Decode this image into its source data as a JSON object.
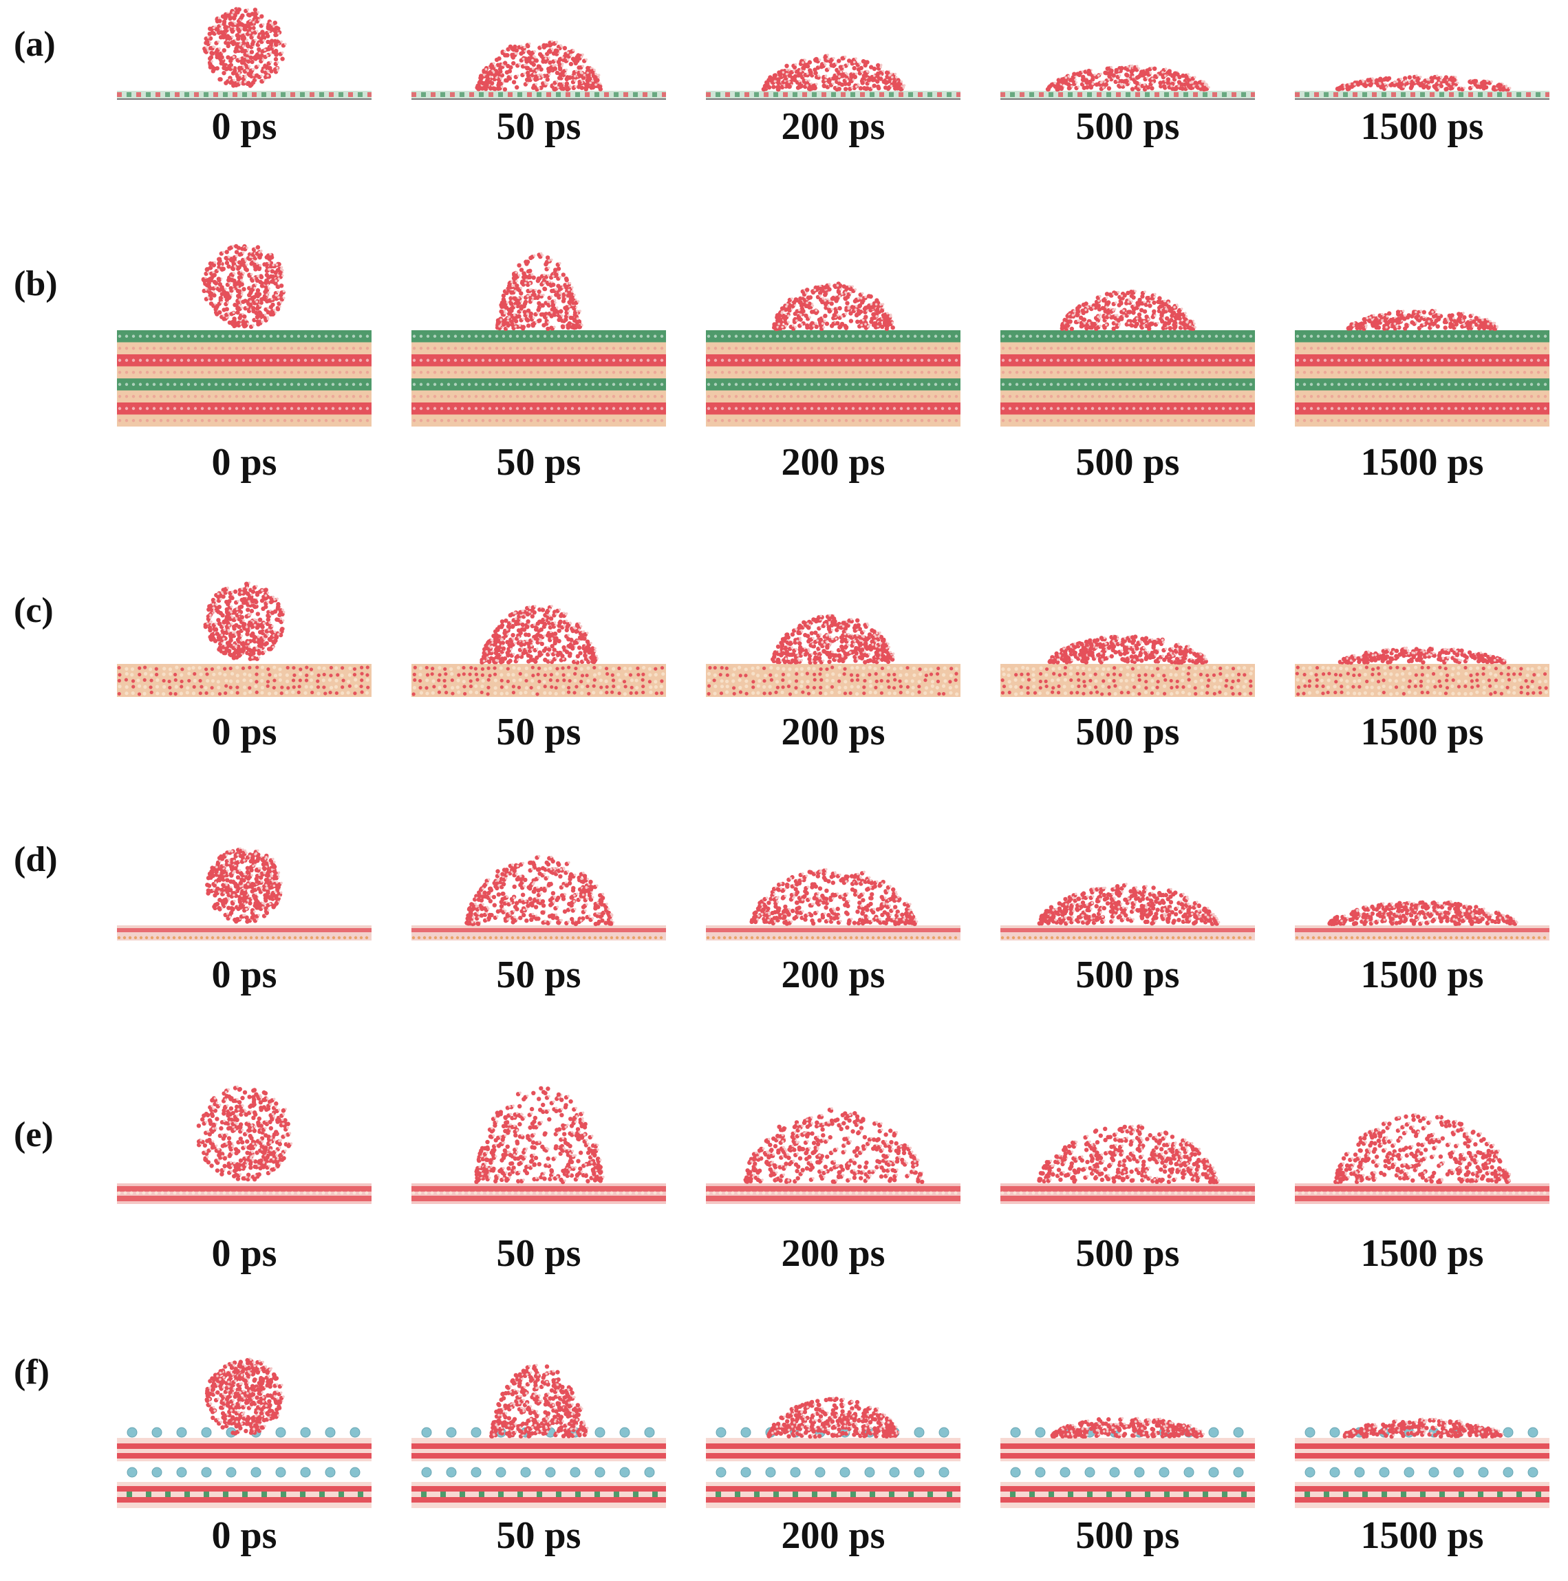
{
  "panels": [
    {
      "label": "(a)",
      "substrate": "thin-checker",
      "times": [
        "0 ps",
        "50 ps",
        "200 ps",
        "500 ps",
        "1500 ps"
      ]
    },
    {
      "label": "(b)",
      "substrate": "thick-layered-green",
      "times": [
        "0 ps",
        "50 ps",
        "200 ps",
        "500 ps",
        "1500 ps"
      ]
    },
    {
      "label": "(c)",
      "substrate": "porous-tan",
      "times": [
        "0 ps",
        "50 ps",
        "200 ps",
        "500 ps",
        "1500 ps"
      ]
    },
    {
      "label": "(d)",
      "substrate": "thin-red",
      "times": [
        "0 ps",
        "50 ps",
        "200 ps",
        "500 ps",
        "1500 ps"
      ]
    },
    {
      "label": "(e)",
      "substrate": "red-slab",
      "times": [
        "0 ps",
        "50 ps",
        "200 ps",
        "500 ps",
        "1500 ps"
      ]
    },
    {
      "label": "(f)",
      "substrate": "layered-with-blue-ions",
      "times": [
        "0 ps",
        "50 ps",
        "200 ps",
        "500 ps",
        "1500 ps"
      ]
    }
  ],
  "colors": {
    "water_oxygen": "#e5505a",
    "water_hydrogen": "#f4c9c9",
    "substrate_green": "#4f9a6b",
    "substrate_red": "#e4525b",
    "substrate_tan": "#f0c9a8",
    "ion_blue": "#86c2cf"
  }
}
